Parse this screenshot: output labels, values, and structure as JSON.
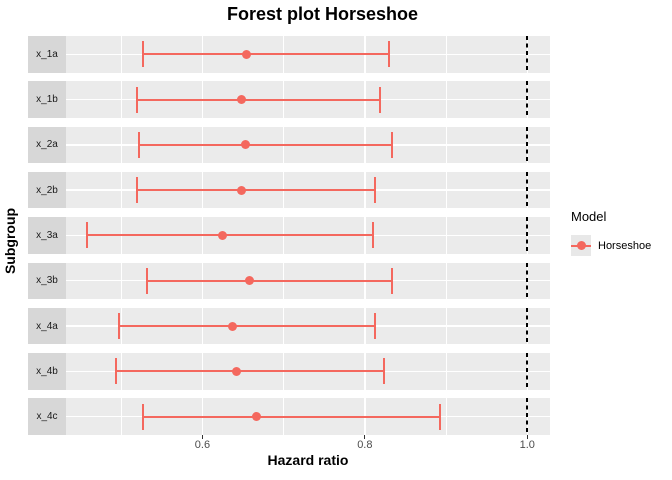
{
  "title": "Forest plot Horseshoe",
  "chart_data": {
    "type": "forest",
    "title": "Forest plot Horseshoe",
    "xlabel": "Hazard ratio",
    "ylabel": "Subgroup",
    "xlim": [
      0.432,
      1.028
    ],
    "x_major_ticks": [
      0.6,
      0.8,
      1.0
    ],
    "x_tick_labels": [
      "0.6",
      "0.8",
      "1.0"
    ],
    "x_minor_ticks": [
      0.5,
      0.7,
      0.9
    ],
    "reference_line": 1.0,
    "grid": true,
    "legend_position": "right",
    "legend": {
      "title": "Model",
      "entries": [
        {
          "label": "Horseshoe",
          "color": "#f4685e"
        }
      ]
    },
    "rows": [
      {
        "subgroup": "x_1a",
        "estimate": 0.654,
        "ci_low": 0.527,
        "ci_high": 0.83
      },
      {
        "subgroup": "x_1b",
        "estimate": 0.648,
        "ci_low": 0.52,
        "ci_high": 0.819
      },
      {
        "subgroup": "x_2a",
        "estimate": 0.653,
        "ci_low": 0.522,
        "ci_high": 0.834
      },
      {
        "subgroup": "x_2b",
        "estimate": 0.648,
        "ci_low": 0.52,
        "ci_high": 0.813
      },
      {
        "subgroup": "x_3a",
        "estimate": 0.625,
        "ci_low": 0.458,
        "ci_high": 0.81
      },
      {
        "subgroup": "x_3b",
        "estimate": 0.658,
        "ci_low": 0.532,
        "ci_high": 0.833
      },
      {
        "subgroup": "x_4a",
        "estimate": 0.637,
        "ci_low": 0.497,
        "ci_high": 0.813
      },
      {
        "subgroup": "x_4b",
        "estimate": 0.642,
        "ci_low": 0.493,
        "ci_high": 0.823
      },
      {
        "subgroup": "x_4c",
        "estimate": 0.666,
        "ci_low": 0.527,
        "ci_high": 0.893
      }
    ],
    "colors": {
      "series": "#f4685e",
      "panel_background": "#ebebeb",
      "strip_background": "#d7d7d7",
      "gridline": "#ffffff",
      "reference_line": "#000000",
      "tick_label": "#4d4d4d"
    }
  }
}
